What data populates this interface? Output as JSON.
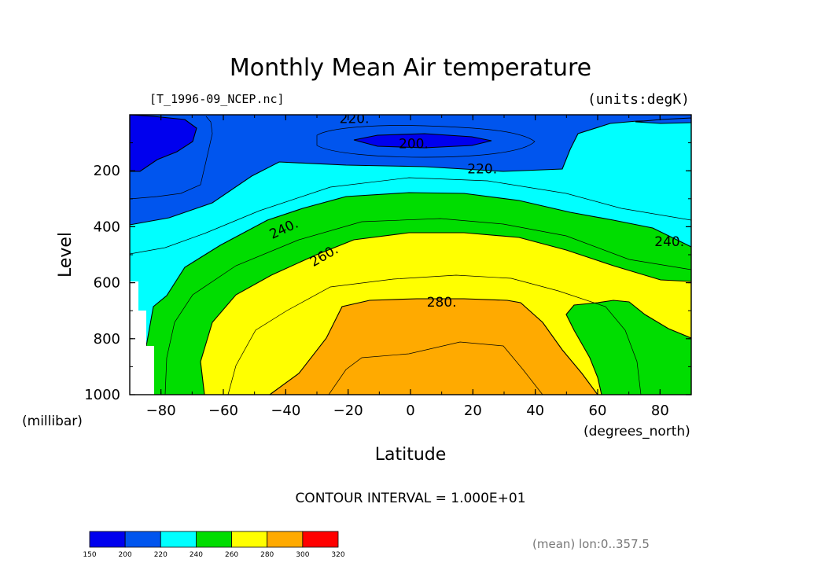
{
  "chart_data": {
    "type": "contour",
    "title": "Monthly Mean Air temperature",
    "subtitle_left": "[T_1996-09_NCEP.nc]",
    "subtitle_right": "(units:degK)",
    "xlabel": "Latitude",
    "xunit": "(degrees_north)",
    "ylabel": "Level",
    "yunit": "(millibar)",
    "xlim": [
      -90,
      90
    ],
    "ylim": [
      1000,
      0
    ],
    "x_ticks": [
      -80,
      -60,
      -40,
      -20,
      0,
      20,
      40,
      60,
      80
    ],
    "y_ticks": [
      200,
      400,
      600,
      800,
      1000
    ],
    "contour_interval_text": "CONTOUR INTERVAL = 1.000E+01",
    "footnote": "(mean) lon:0..357.5",
    "contour_labels": [
      {
        "text": "220.",
        "lat": -18,
        "lev": 12
      },
      {
        "text": "200.",
        "lat": 1,
        "lev": 102
      },
      {
        "text": "220.",
        "lat": 23,
        "lev": 192
      },
      {
        "text": "240.",
        "lat": -40,
        "lev": 405,
        "rot": -25
      },
      {
        "text": "260.",
        "lat": -27,
        "lev": 500,
        "rot": -30
      },
      {
        "text": "280.",
        "lat": 10,
        "lev": 668
      },
      {
        "text": "240.",
        "lat": 83,
        "lev": 452
      }
    ],
    "colorbar": {
      "levels": [
        150,
        200,
        220,
        240,
        260,
        280,
        300,
        320
      ],
      "colors": [
        "#0000ee",
        "#0055ee",
        "#00ffff",
        "#00dd00",
        "#ffff00",
        "#ffaa00",
        "#ff0000"
      ]
    },
    "fill_colors": {
      "lt200": "#0000ee",
      "200_220": "#0055ee",
      "220_240": "#00ffff",
      "240_260": "#00dd00",
      "260_280": "#ffff00",
      "280_300": "#ffaa00"
    }
  }
}
